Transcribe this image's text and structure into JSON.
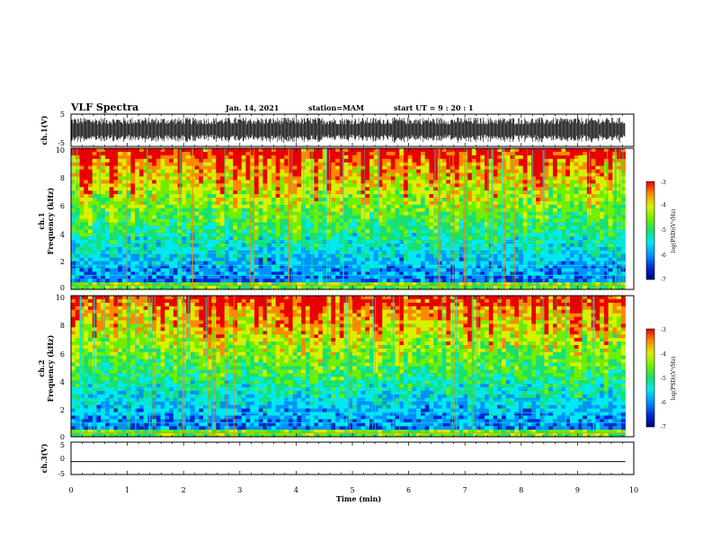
{
  "header": {
    "title": "VLF Spectra",
    "date": "Jan. 14, 2021",
    "station": "station=MAM",
    "start": "start UT =   9 : 20 : 1"
  },
  "colors": {
    "colormap": [
      "#00007a",
      "#0028d0",
      "#0090ff",
      "#00e8f0",
      "#18e070",
      "#70ee00",
      "#d8f000",
      "#ff8800",
      "#e80000"
    ]
  },
  "chart_data": [
    {
      "type": "line",
      "name": "ch1-waveform",
      "ylabel": "ch.1(V)",
      "yticks": [
        "5",
        "-5"
      ],
      "ylim": [
        -5,
        5
      ],
      "xlim": [
        0,
        10
      ],
      "description_values": {
        "min_amplitude": -4,
        "max_amplitude": 4
      }
    },
    {
      "type": "heatmap",
      "name": "ch1-spectrogram",
      "ylabel": [
        "ch.1",
        "Frequency (kHz)"
      ],
      "yticks": [
        "0",
        "2",
        "4",
        "6",
        "8",
        "10"
      ],
      "ylim": [
        0,
        10
      ],
      "xlim": [
        0,
        9.85
      ],
      "colorbar": {
        "label": "log(PSD)(V²/Hz)",
        "ticks": [
          "-3",
          "-4",
          "-5",
          "-6",
          "-7"
        ],
        "range": [
          -7,
          -3
        ]
      }
    },
    {
      "type": "heatmap",
      "name": "ch2-spectrogram",
      "ylabel": [
        "ch.2",
        "Frequency (kHz)"
      ],
      "yticks": [
        "0",
        "2",
        "4",
        "6",
        "8",
        "10"
      ],
      "ylim": [
        0,
        10
      ],
      "xlim": [
        0,
        9.85
      ],
      "colorbar": {
        "label": "log(PSD)(V²/Hz)",
        "ticks": [
          "-3",
          "-4",
          "-5",
          "-6",
          "-7"
        ],
        "range": [
          -7,
          -3
        ]
      }
    },
    {
      "type": "line",
      "name": "ch3-waveform",
      "ylabel": "ch.3(V)",
      "yticks": [
        "5",
        "0",
        "-5"
      ],
      "ylim": [
        -5,
        5
      ],
      "xlim": [
        0,
        9.85
      ],
      "values": [
        -1,
        -1
      ]
    }
  ],
  "xaxis": {
    "label": "Time (min)",
    "ticks": [
      "0",
      "1",
      "2",
      "3",
      "4",
      "5",
      "6",
      "7",
      "8",
      "9",
      "10"
    ],
    "range": [
      0,
      10
    ]
  }
}
